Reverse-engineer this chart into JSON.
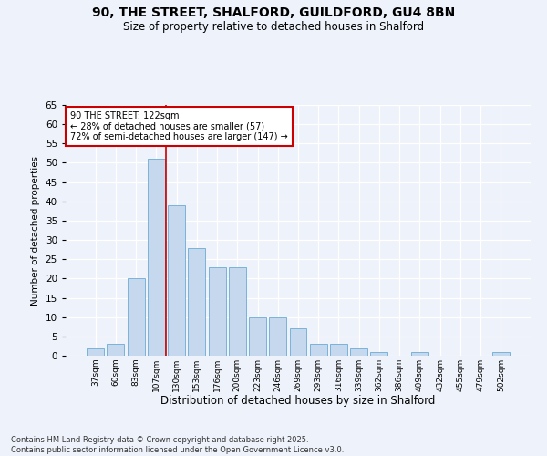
{
  "title_line1": "90, THE STREET, SHALFORD, GUILDFORD, GU4 8BN",
  "title_line2": "Size of property relative to detached houses in Shalford",
  "xlabel": "Distribution of detached houses by size in Shalford",
  "ylabel": "Number of detached properties",
  "categories": [
    "37sqm",
    "60sqm",
    "83sqm",
    "107sqm",
    "130sqm",
    "153sqm",
    "176sqm",
    "200sqm",
    "223sqm",
    "246sqm",
    "269sqm",
    "293sqm",
    "316sqm",
    "339sqm",
    "362sqm",
    "386sqm",
    "409sqm",
    "432sqm",
    "455sqm",
    "479sqm",
    "502sqm"
  ],
  "values": [
    2,
    3,
    20,
    51,
    39,
    28,
    23,
    23,
    10,
    10,
    7,
    3,
    3,
    2,
    1,
    0,
    1,
    0,
    0,
    0,
    1
  ],
  "bar_color": "#c5d8ee",
  "bar_edge_color": "#6aaad4",
  "bar_width": 0.85,
  "vline_x": 3.5,
  "vline_color": "#cc0000",
  "annotation_line1": "90 THE STREET: 122sqm",
  "annotation_line2": "← 28% of detached houses are smaller (57)",
  "annotation_line3": "72% of semi-detached houses are larger (147) →",
  "annotation_box_color": "#ffffff",
  "annotation_box_edge": "#cc0000",
  "background_color": "#eef2fa",
  "grid_color": "#ffffff",
  "ylim": [
    0,
    65
  ],
  "yticks": [
    0,
    5,
    10,
    15,
    20,
    25,
    30,
    35,
    40,
    45,
    50,
    55,
    60,
    65
  ],
  "footer_line1": "Contains HM Land Registry data © Crown copyright and database right 2025.",
  "footer_line2": "Contains public sector information licensed under the Open Government Licence v3.0."
}
